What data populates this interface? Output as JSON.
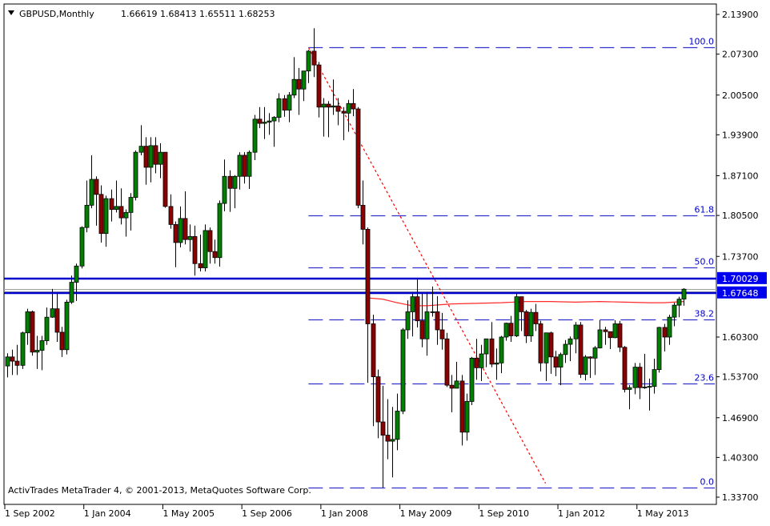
{
  "header": {
    "symbol_timeframe": "GBPUSD,Monthly",
    "ohlc": "1.66619 1.68413 1.65511 1.68253",
    "menu_icon": "triangle-down-icon"
  },
  "watermark": "ActivTrades MetaTrader 4, © 2001-2013, MetaQuotes Software Corp.",
  "colors": {
    "bull": "#008000",
    "bear": "#8b0000",
    "outline": "#000000",
    "level_line": "#0000cc",
    "fib": "#3333cc",
    "trendline": "#ff0000",
    "ma": "#ff2a2a",
    "price_tag_bg": "#0000ee",
    "bid_line": "#a0a0a0"
  },
  "chart_data": {
    "type": "candlestick",
    "timeframe": "Monthly",
    "start_month": "2002-09",
    "ylim": [
      1.337,
      2.139
    ],
    "y_ticks": [
      "2.13900",
      "2.07300",
      "2.00500",
      "1.93900",
      "1.87100",
      "1.80500",
      "1.73700",
      "1.60300",
      "1.53700",
      "1.46900",
      "1.40300",
      "1.33700"
    ],
    "x_ticks": [
      {
        "label": "1 Sep 2002",
        "bar": 0
      },
      {
        "label": "1 Jan 2004",
        "bar": 16
      },
      {
        "label": "1 May 2005",
        "bar": 32
      },
      {
        "label": "1 Sep 2006",
        "bar": 48
      },
      {
        "label": "1 Jan 2008",
        "bar": 64
      },
      {
        "label": "1 May 2009",
        "bar": 80
      },
      {
        "label": "1 Sep 2010",
        "bar": 96
      },
      {
        "label": "1 Jan 2012",
        "bar": 112
      },
      {
        "label": "1 May 2013",
        "bar": 128
      }
    ],
    "ohlc": [
      [
        1.555,
        1.576,
        1.536,
        1.57
      ],
      [
        1.57,
        1.582,
        1.54,
        1.563
      ],
      [
        1.563,
        1.59,
        1.54,
        1.556
      ],
      [
        1.556,
        1.612,
        1.55,
        1.61
      ],
      [
        1.61,
        1.65,
        1.59,
        1.645
      ],
      [
        1.645,
        1.647,
        1.572,
        1.578
      ],
      [
        1.578,
        1.605,
        1.55,
        1.581
      ],
      [
        1.581,
        1.605,
        1.548,
        1.597
      ],
      [
        1.597,
        1.652,
        1.59,
        1.636
      ],
      [
        1.636,
        1.683,
        1.635,
        1.65
      ],
      [
        1.65,
        1.675,
        1.595,
        1.611
      ],
      [
        1.611,
        1.62,
        1.57,
        1.582
      ],
      [
        1.582,
        1.665,
        1.574,
        1.661
      ],
      [
        1.661,
        1.705,
        1.658,
        1.694
      ],
      [
        1.694,
        1.725,
        1.663,
        1.721
      ],
      [
        1.721,
        1.787,
        1.717,
        1.785
      ],
      [
        1.785,
        1.863,
        1.777,
        1.822
      ],
      [
        1.822,
        1.905,
        1.817,
        1.865
      ],
      [
        1.865,
        1.87,
        1.788,
        1.84
      ],
      [
        1.84,
        1.855,
        1.76,
        1.775
      ],
      [
        1.775,
        1.838,
        1.753,
        1.833
      ],
      [
        1.833,
        1.848,
        1.795,
        1.815
      ],
      [
        1.815,
        1.863,
        1.81,
        1.82
      ],
      [
        1.82,
        1.85,
        1.79,
        1.801
      ],
      [
        1.801,
        1.815,
        1.77,
        1.81
      ],
      [
        1.81,
        1.842,
        1.78,
        1.835
      ],
      [
        1.835,
        1.913,
        1.83,
        1.91
      ],
      [
        1.91,
        1.955,
        1.905,
        1.92
      ],
      [
        1.92,
        1.935,
        1.856,
        1.885
      ],
      [
        1.885,
        1.935,
        1.86,
        1.921
      ],
      [
        1.921,
        1.935,
        1.875,
        1.89
      ],
      [
        1.89,
        1.925,
        1.867,
        1.91
      ],
      [
        1.91,
        1.91,
        1.818,
        1.82
      ],
      [
        1.82,
        1.84,
        1.783,
        1.79
      ],
      [
        1.79,
        1.795,
        1.719,
        1.76
      ],
      [
        1.76,
        1.82,
        1.752,
        1.8
      ],
      [
        1.8,
        1.845,
        1.757,
        1.765
      ],
      [
        1.765,
        1.79,
        1.745,
        1.77
      ],
      [
        1.77,
        1.788,
        1.705,
        1.725
      ],
      [
        1.725,
        1.773,
        1.712,
        1.718
      ],
      [
        1.718,
        1.79,
        1.712,
        1.78
      ],
      [
        1.78,
        1.785,
        1.725,
        1.745
      ],
      [
        1.745,
        1.765,
        1.725,
        1.735
      ],
      [
        1.735,
        1.83,
        1.72,
        1.825
      ],
      [
        1.825,
        1.898,
        1.812,
        1.87
      ],
      [
        1.87,
        1.88,
        1.811,
        1.85
      ],
      [
        1.85,
        1.872,
        1.817,
        1.87
      ],
      [
        1.87,
        1.91,
        1.848,
        1.905
      ],
      [
        1.905,
        1.91,
        1.858,
        1.87
      ],
      [
        1.87,
        1.913,
        1.849,
        1.91
      ],
      [
        1.91,
        1.972,
        1.897,
        1.965
      ],
      [
        1.965,
        1.985,
        1.95,
        1.958
      ],
      [
        1.958,
        1.985,
        1.932,
        1.96
      ],
      [
        1.96,
        1.975,
        1.939,
        1.962
      ],
      [
        1.962,
        1.97,
        1.919,
        1.968
      ],
      [
        1.968,
        2.008,
        1.96,
        1.999
      ],
      [
        1.999,
        2.005,
        1.969,
        1.98
      ],
      [
        1.98,
        2.01,
        1.96,
        2.005
      ],
      [
        2.005,
        2.068,
        2.0,
        2.031
      ],
      [
        2.031,
        2.05,
        1.972,
        2.015
      ],
      [
        2.015,
        2.045,
        1.995,
        2.045
      ],
      [
        2.045,
        2.08,
        2.025,
        2.078
      ],
      [
        2.078,
        2.116,
        2.035,
        2.055
      ],
      [
        2.055,
        2.06,
        1.968,
        1.985
      ],
      [
        1.985,
        2.0,
        1.936,
        1.99
      ],
      [
        1.99,
        1.995,
        1.935,
        1.985
      ],
      [
        1.985,
        2.031,
        1.972,
        1.987
      ],
      [
        1.987,
        2.0,
        1.955,
        1.978
      ],
      [
        1.978,
        1.985,
        1.93,
        1.975
      ],
      [
        1.975,
        1.997,
        1.944,
        1.991
      ],
      [
        1.991,
        2.015,
        1.97,
        1.982
      ],
      [
        1.982,
        1.985,
        1.817,
        1.822
      ],
      [
        1.822,
        1.863,
        1.757,
        1.782
      ],
      [
        1.782,
        1.785,
        1.527,
        1.625
      ],
      [
        1.625,
        1.64,
        1.455,
        1.537
      ],
      [
        1.537,
        1.549,
        1.435,
        1.462
      ],
      [
        1.462,
        1.522,
        1.353,
        1.44
      ],
      [
        1.44,
        1.5,
        1.4,
        1.43
      ],
      [
        1.43,
        1.487,
        1.37,
        1.433
      ],
      [
        1.433,
        1.509,
        1.415,
        1.48
      ],
      [
        1.48,
        1.618,
        1.475,
        1.615
      ],
      [
        1.615,
        1.664,
        1.6,
        1.645
      ],
      [
        1.645,
        1.677,
        1.604,
        1.67
      ],
      [
        1.67,
        1.7,
        1.619,
        1.63
      ],
      [
        1.63,
        1.677,
        1.586,
        1.6
      ],
      [
        1.6,
        1.677,
        1.572,
        1.645
      ],
      [
        1.645,
        1.687,
        1.637,
        1.645
      ],
      [
        1.645,
        1.671,
        1.59,
        1.615
      ],
      [
        1.615,
        1.643,
        1.582,
        1.6
      ],
      [
        1.6,
        1.61,
        1.52,
        1.523
      ],
      [
        1.523,
        1.54,
        1.478,
        1.518
      ],
      [
        1.518,
        1.562,
        1.518,
        1.53
      ],
      [
        1.53,
        1.54,
        1.423,
        1.445
      ],
      [
        1.445,
        1.509,
        1.431,
        1.496
      ],
      [
        1.496,
        1.57,
        1.49,
        1.568
      ],
      [
        1.568,
        1.6,
        1.532,
        1.552
      ],
      [
        1.552,
        1.59,
        1.53,
        1.575
      ],
      [
        1.575,
        1.6,
        1.553,
        1.6
      ],
      [
        1.6,
        1.628,
        1.553,
        1.558
      ],
      [
        1.558,
        1.584,
        1.532,
        1.56
      ],
      [
        1.56,
        1.605,
        1.543,
        1.603
      ],
      [
        1.603,
        1.627,
        1.597,
        1.626
      ],
      [
        1.626,
        1.638,
        1.595,
        1.605
      ],
      [
        1.605,
        1.675,
        1.603,
        1.67
      ],
      [
        1.67,
        1.67,
        1.613,
        1.645
      ],
      [
        1.645,
        1.648,
        1.593,
        1.605
      ],
      [
        1.605,
        1.65,
        1.595,
        1.644
      ],
      [
        1.644,
        1.658,
        1.613,
        1.625
      ],
      [
        1.625,
        1.63,
        1.546,
        1.56
      ],
      [
        1.56,
        1.61,
        1.53,
        1.61
      ],
      [
        1.61,
        1.612,
        1.542,
        1.57
      ],
      [
        1.57,
        1.58,
        1.538,
        1.553
      ],
      [
        1.553,
        1.577,
        1.523,
        1.574
      ],
      [
        1.574,
        1.598,
        1.56,
        1.591
      ],
      [
        1.591,
        1.604,
        1.563,
        1.6
      ],
      [
        1.6,
        1.628,
        1.576,
        1.623
      ],
      [
        1.623,
        1.628,
        1.535,
        1.541
      ],
      [
        1.541,
        1.573,
        1.531,
        1.57
      ],
      [
        1.57,
        1.571,
        1.535,
        1.568
      ],
      [
        1.568,
        1.588,
        1.54,
        1.585
      ],
      [
        1.585,
        1.631,
        1.584,
        1.615
      ],
      [
        1.615,
        1.62,
        1.59,
        1.612
      ],
      [
        1.612,
        1.612,
        1.583,
        1.602
      ],
      [
        1.602,
        1.631,
        1.601,
        1.625
      ],
      [
        1.625,
        1.63,
        1.578,
        1.586
      ],
      [
        1.586,
        1.588,
        1.511,
        1.516
      ],
      [
        1.516,
        1.523,
        1.483,
        1.519
      ],
      [
        1.519,
        1.56,
        1.508,
        1.553
      ],
      [
        1.553,
        1.56,
        1.5,
        1.519
      ],
      [
        1.519,
        1.575,
        1.517,
        1.52
      ],
      [
        1.52,
        1.534,
        1.481,
        1.521
      ],
      [
        1.521,
        1.567,
        1.509,
        1.549
      ],
      [
        1.549,
        1.62,
        1.544,
        1.619
      ],
      [
        1.619,
        1.625,
        1.579,
        1.603
      ],
      [
        1.603,
        1.64,
        1.59,
        1.636
      ],
      [
        1.636,
        1.66,
        1.621,
        1.656
      ],
      [
        1.656,
        1.67,
        1.636,
        1.666
      ],
      [
        1.66619,
        1.68413,
        1.65511,
        1.68253
      ]
    ],
    "horizontal_levels": [
      {
        "price": 1.70029,
        "label": "1.70029"
      },
      {
        "price": 1.67648,
        "label": "1.67648"
      }
    ],
    "bid_line": 1.68253,
    "fibonacci": {
      "from_bar": 61,
      "levels": [
        {
          "label": "100.0",
          "price": 2.084
        },
        {
          "label": "61.8",
          "price": 1.805
        },
        {
          "label": "50.0",
          "price": 1.7185
        },
        {
          "label": "38.2",
          "price": 1.6322
        },
        {
          "label": "23.6",
          "price": 1.5255
        },
        {
          "label": "0.0",
          "price": 1.353
        }
      ]
    },
    "trendline": {
      "from": {
        "bar": 61,
        "price": 2.084
      },
      "to": {
        "bar": 109,
        "price": 1.36
      },
      "style": "dotted"
    },
    "moving_average": [
      [
        73,
        1.668
      ],
      [
        76,
        1.666
      ],
      [
        79,
        1.66
      ],
      [
        82,
        1.655
      ],
      [
        85,
        1.655
      ],
      [
        90,
        1.658
      ],
      [
        95,
        1.659
      ],
      [
        100,
        1.66
      ],
      [
        105,
        1.662
      ],
      [
        110,
        1.662
      ],
      [
        115,
        1.661
      ],
      [
        120,
        1.662
      ],
      [
        125,
        1.661
      ],
      [
        130,
        1.66
      ],
      [
        133,
        1.66
      ],
      [
        137,
        1.662
      ]
    ]
  }
}
